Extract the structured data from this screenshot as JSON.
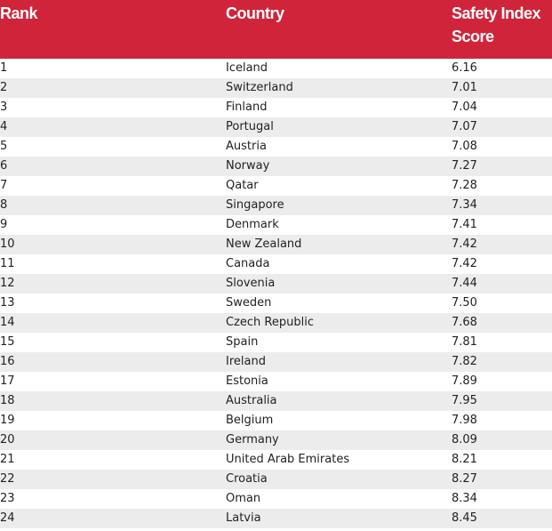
{
  "table": {
    "header": [
      "Rank",
      "Country",
      "Safety Index Score"
    ],
    "rows": [
      [
        "1",
        "Iceland",
        "6.16"
      ],
      [
        "2",
        "Switzerland",
        "7.01"
      ],
      [
        "3",
        "Finland",
        "7.04"
      ],
      [
        "4",
        "Portugal",
        "7.07"
      ],
      [
        "5",
        "Austria",
        "7.08"
      ],
      [
        "6",
        "Norway",
        "7.27"
      ],
      [
        "7",
        "Qatar",
        "7.28"
      ],
      [
        "8",
        "Singapore",
        "7.34"
      ],
      [
        "9",
        "Denmark",
        "7.41"
      ],
      [
        "10",
        "New Zealand",
        "7.42"
      ],
      [
        "11",
        "Canada",
        "7.42"
      ],
      [
        "12",
        "Slovenia",
        "7.44"
      ],
      [
        "13",
        "Sweden",
        "7.50"
      ],
      [
        "14",
        "Czech Republic",
        "7.68"
      ],
      [
        "15",
        "Spain",
        "7.81"
      ],
      [
        "16",
        "Ireland",
        "7.82"
      ],
      [
        "17",
        "Estonia",
        "7.89"
      ],
      [
        "18",
        "Australia",
        "7.95"
      ],
      [
        "19",
        "Belgium",
        "7.98"
      ],
      [
        "20",
        "Germany",
        "8.09"
      ],
      [
        "21",
        "United Arab Emirates",
        "8.21"
      ],
      [
        "22",
        "Croatia",
        "8.27"
      ],
      [
        "23",
        "Oman",
        "8.34"
      ],
      [
        "24",
        "Latvia",
        "8.45"
      ]
    ]
  }
}
